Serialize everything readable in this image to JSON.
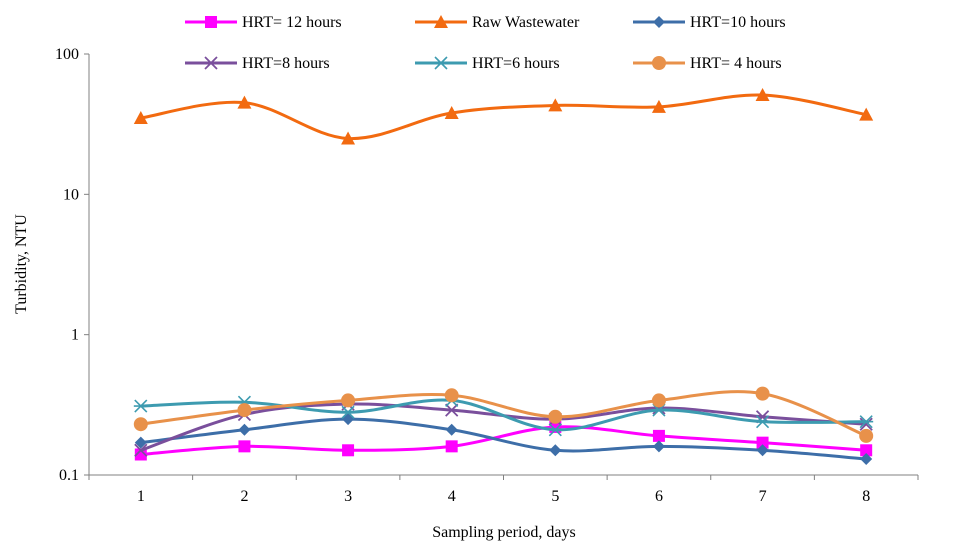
{
  "chart_data": {
    "type": "line",
    "title": "",
    "xlabel": "Sampling period, days",
    "ylabel": "Turbidity, NTU",
    "x": [
      1,
      2,
      3,
      4,
      5,
      6,
      7,
      8
    ],
    "x_tick_labels": [
      "1",
      "2",
      "3",
      "4",
      "5",
      "6",
      "7",
      "8"
    ],
    "y_scale": "log",
    "ylim": [
      0.1,
      100
    ],
    "y_tick_labels": [
      "0.1",
      "1",
      "10",
      "100"
    ],
    "grid": false,
    "legend_position": "top",
    "series": [
      {
        "name": "HRT= 12 hours",
        "color": "#ff00ff",
        "marker": "square",
        "values": [
          0.14,
          0.16,
          0.15,
          0.16,
          0.22,
          0.19,
          0.17,
          0.15
        ]
      },
      {
        "name": "Raw Wastewater",
        "color": "#f26a10",
        "marker": "triangle",
        "values": [
          35,
          45,
          25,
          38,
          43,
          42,
          51,
          37
        ]
      },
      {
        "name": "HRT=10 hours",
        "color": "#3d6ea8",
        "marker": "diamond",
        "values": [
          0.17,
          0.21,
          0.25,
          0.21,
          0.15,
          0.16,
          0.15,
          0.13
        ]
      },
      {
        "name": "HRT=8 hours",
        "color": "#7a4f9c",
        "marker": "x",
        "values": [
          0.15,
          0.27,
          0.32,
          0.29,
          0.25,
          0.3,
          0.26,
          0.23
        ]
      },
      {
        "name": "HRT=6 hours",
        "color": "#3d9bb0",
        "marker": "asterisk",
        "values": [
          0.31,
          0.33,
          0.28,
          0.34,
          0.21,
          0.29,
          0.24,
          0.24
        ]
      },
      {
        "name": "HRT= 4 hours",
        "color": "#e8914a",
        "marker": "circle",
        "values": [
          0.23,
          0.29,
          0.34,
          0.37,
          0.26,
          0.34,
          0.38,
          0.19
        ]
      }
    ]
  }
}
